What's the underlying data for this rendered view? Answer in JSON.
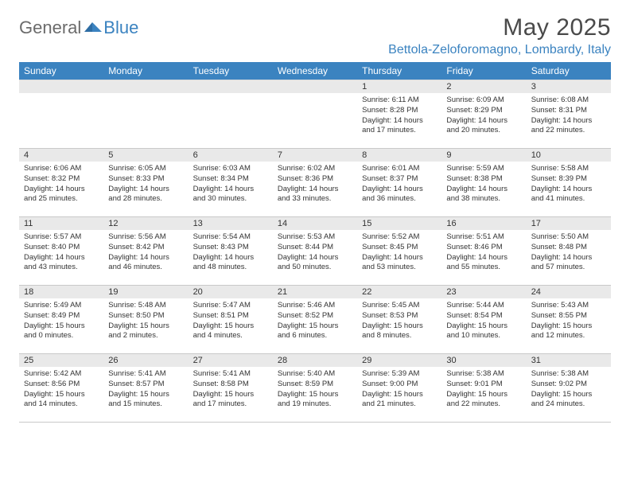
{
  "logo": {
    "text_gray": "General",
    "text_blue": "Blue"
  },
  "title": "May 2025",
  "location": "Bettola-Zeloforomagno, Lombardy, Italy",
  "colors": {
    "header_bg": "#3b83c0",
    "header_text": "#ffffff",
    "daynum_bg": "#e9e9e9",
    "body_text": "#333333",
    "rule": "#c9c9c9",
    "logo_gray": "#6b6b6b",
    "logo_blue": "#3b83c0",
    "page_bg": "#ffffff"
  },
  "weekdays": [
    "Sunday",
    "Monday",
    "Tuesday",
    "Wednesday",
    "Thursday",
    "Friday",
    "Saturday"
  ],
  "weeks": [
    [
      null,
      null,
      null,
      null,
      {
        "n": "1",
        "sr": "6:11 AM",
        "ss": "8:28 PM",
        "dl": "14 hours and 17 minutes."
      },
      {
        "n": "2",
        "sr": "6:09 AM",
        "ss": "8:29 PM",
        "dl": "14 hours and 20 minutes."
      },
      {
        "n": "3",
        "sr": "6:08 AM",
        "ss": "8:31 PM",
        "dl": "14 hours and 22 minutes."
      }
    ],
    [
      {
        "n": "4",
        "sr": "6:06 AM",
        "ss": "8:32 PM",
        "dl": "14 hours and 25 minutes."
      },
      {
        "n": "5",
        "sr": "6:05 AM",
        "ss": "8:33 PM",
        "dl": "14 hours and 28 minutes."
      },
      {
        "n": "6",
        "sr": "6:03 AM",
        "ss": "8:34 PM",
        "dl": "14 hours and 30 minutes."
      },
      {
        "n": "7",
        "sr": "6:02 AM",
        "ss": "8:36 PM",
        "dl": "14 hours and 33 minutes."
      },
      {
        "n": "8",
        "sr": "6:01 AM",
        "ss": "8:37 PM",
        "dl": "14 hours and 36 minutes."
      },
      {
        "n": "9",
        "sr": "5:59 AM",
        "ss": "8:38 PM",
        "dl": "14 hours and 38 minutes."
      },
      {
        "n": "10",
        "sr": "5:58 AM",
        "ss": "8:39 PM",
        "dl": "14 hours and 41 minutes."
      }
    ],
    [
      {
        "n": "11",
        "sr": "5:57 AM",
        "ss": "8:40 PM",
        "dl": "14 hours and 43 minutes."
      },
      {
        "n": "12",
        "sr": "5:56 AM",
        "ss": "8:42 PM",
        "dl": "14 hours and 46 minutes."
      },
      {
        "n": "13",
        "sr": "5:54 AM",
        "ss": "8:43 PM",
        "dl": "14 hours and 48 minutes."
      },
      {
        "n": "14",
        "sr": "5:53 AM",
        "ss": "8:44 PM",
        "dl": "14 hours and 50 minutes."
      },
      {
        "n": "15",
        "sr": "5:52 AM",
        "ss": "8:45 PM",
        "dl": "14 hours and 53 minutes."
      },
      {
        "n": "16",
        "sr": "5:51 AM",
        "ss": "8:46 PM",
        "dl": "14 hours and 55 minutes."
      },
      {
        "n": "17",
        "sr": "5:50 AM",
        "ss": "8:48 PM",
        "dl": "14 hours and 57 minutes."
      }
    ],
    [
      {
        "n": "18",
        "sr": "5:49 AM",
        "ss": "8:49 PM",
        "dl": "15 hours and 0 minutes."
      },
      {
        "n": "19",
        "sr": "5:48 AM",
        "ss": "8:50 PM",
        "dl": "15 hours and 2 minutes."
      },
      {
        "n": "20",
        "sr": "5:47 AM",
        "ss": "8:51 PM",
        "dl": "15 hours and 4 minutes."
      },
      {
        "n": "21",
        "sr": "5:46 AM",
        "ss": "8:52 PM",
        "dl": "15 hours and 6 minutes."
      },
      {
        "n": "22",
        "sr": "5:45 AM",
        "ss": "8:53 PM",
        "dl": "15 hours and 8 minutes."
      },
      {
        "n": "23",
        "sr": "5:44 AM",
        "ss": "8:54 PM",
        "dl": "15 hours and 10 minutes."
      },
      {
        "n": "24",
        "sr": "5:43 AM",
        "ss": "8:55 PM",
        "dl": "15 hours and 12 minutes."
      }
    ],
    [
      {
        "n": "25",
        "sr": "5:42 AM",
        "ss": "8:56 PM",
        "dl": "15 hours and 14 minutes."
      },
      {
        "n": "26",
        "sr": "5:41 AM",
        "ss": "8:57 PM",
        "dl": "15 hours and 15 minutes."
      },
      {
        "n": "27",
        "sr": "5:41 AM",
        "ss": "8:58 PM",
        "dl": "15 hours and 17 minutes."
      },
      {
        "n": "28",
        "sr": "5:40 AM",
        "ss": "8:59 PM",
        "dl": "15 hours and 19 minutes."
      },
      {
        "n": "29",
        "sr": "5:39 AM",
        "ss": "9:00 PM",
        "dl": "15 hours and 21 minutes."
      },
      {
        "n": "30",
        "sr": "5:38 AM",
        "ss": "9:01 PM",
        "dl": "15 hours and 22 minutes."
      },
      {
        "n": "31",
        "sr": "5:38 AM",
        "ss": "9:02 PM",
        "dl": "15 hours and 24 minutes."
      }
    ]
  ],
  "labels": {
    "sunrise": "Sunrise:",
    "sunset": "Sunset:",
    "daylight": "Daylight:"
  }
}
